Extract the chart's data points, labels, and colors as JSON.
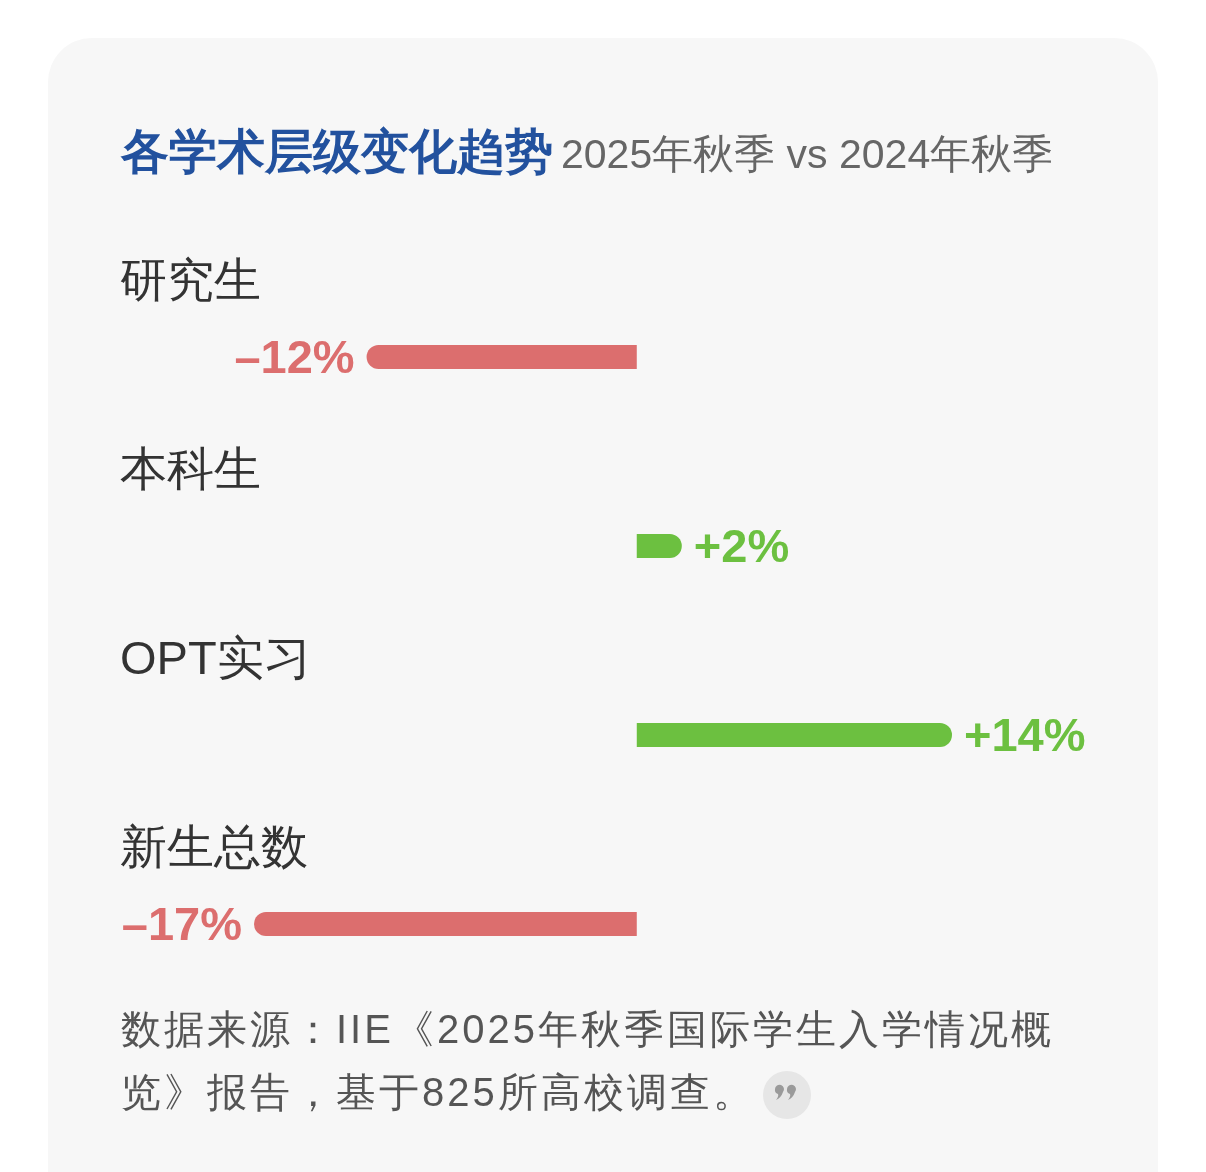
{
  "chart_data": {
    "type": "bar",
    "orientation": "horizontal",
    "tick_labels": "y",
    "title": "各学术层级变化趋势",
    "subtitle": "2025年秋季 vs 2024年秋季",
    "categories": [
      "研究生",
      "本科生",
      "OPT实习",
      "新生总数"
    ],
    "values": [
      -12,
      2,
      14,
      -17
    ],
    "colors": [
      "#dc6e6e",
      "#6cc040",
      "#6cc040",
      "#dc6e6e"
    ],
    "value_labels": [
      "–12%",
      "+2%",
      "+14%",
      "–17%"
    ],
    "annotations": [
      "数据来源：IIE《2025年秋季国际学生入学情况概览》报告，基于825所高校调查。"
    ]
  }
}
